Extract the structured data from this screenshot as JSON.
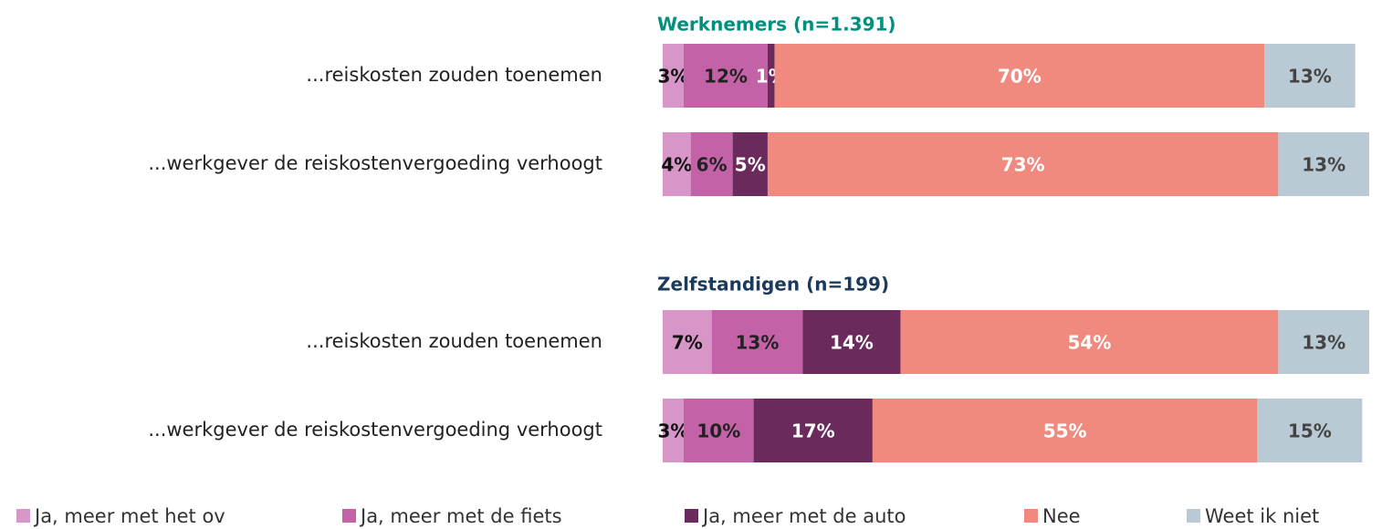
{
  "chart_data": [
    {
      "type": "stacked-bar",
      "orientation": "horizontal",
      "title": "Werknemers (n=1.391)",
      "title_color": "#00907f",
      "categories": [
        "...reiskosten zouden toenemen",
        "...werkgever de reiskostenvergoeding verhoogt"
      ],
      "series": [
        {
          "name": "Ja, meer met het ov",
          "color": "#d896c8",
          "values": [
            3,
            4
          ],
          "value_labels": [
            "3%",
            "4%"
          ]
        },
        {
          "name": "Ja, meer met de fiets",
          "color": "#c462a8",
          "values": [
            12,
            6
          ],
          "value_labels": [
            "12%",
            "6%"
          ]
        },
        {
          "name": "Ja, meer met de auto",
          "color": "#6b2a5c",
          "values": [
            1,
            5
          ],
          "value_labels": [
            "1%",
            "5%"
          ]
        },
        {
          "name": "Nee",
          "color": "#f08a7e",
          "values": [
            70,
            73
          ],
          "value_labels": [
            "70%",
            "73%"
          ]
        },
        {
          "name": "Weet ik niet",
          "color": "#b9cad4",
          "values": [
            13,
            13
          ],
          "value_labels": [
            "13%",
            "13%"
          ]
        }
      ]
    },
    {
      "type": "stacked-bar",
      "orientation": "horizontal",
      "title": "Zelfstandigen (n=199)",
      "title_color": "#1b3a5c",
      "categories": [
        "...reiskosten zouden toenemen",
        "...werkgever de reiskostenvergoeding verhoogt"
      ],
      "series": [
        {
          "name": "Ja, meer met het ov",
          "color": "#d896c8",
          "values": [
            7,
            3
          ],
          "value_labels": [
            "7%",
            "3%"
          ]
        },
        {
          "name": "Ja, meer met de fiets",
          "color": "#c462a8",
          "values": [
            13,
            10
          ],
          "value_labels": [
            "13%",
            "10%"
          ]
        },
        {
          "name": "Ja, meer met de auto",
          "color": "#6b2a5c",
          "values": [
            14,
            17
          ],
          "value_labels": [
            "14%",
            "17%"
          ]
        },
        {
          "name": "Nee",
          "color": "#f08a7e",
          "values": [
            54,
            55
          ],
          "value_labels": [
            "54%",
            "55%"
          ]
        },
        {
          "name": "Weet ik niet",
          "color": "#b9cad4",
          "values": [
            13,
            15
          ],
          "value_labels": [
            "13%",
            "15%"
          ]
        }
      ]
    }
  ]
}
